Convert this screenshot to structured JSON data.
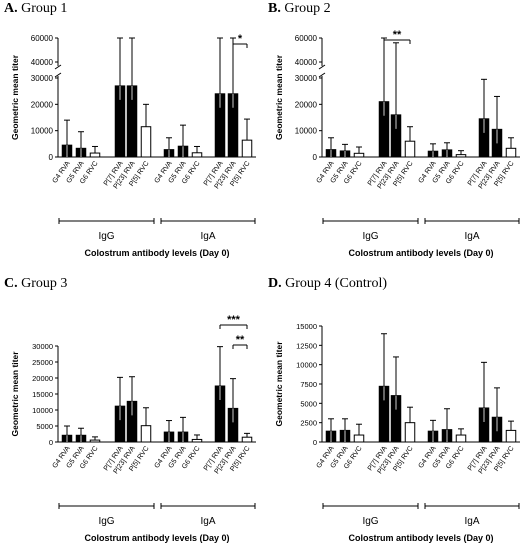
{
  "chart_data": [
    {
      "type": "bar",
      "panel_letter": "A.",
      "title": "Group 1",
      "ylabel": "Geometric mean titer",
      "xlabel": "Colostrum antibody levels (Day 0)",
      "axis_break": true,
      "y_ticks_lower": [
        "0",
        "10000",
        "20000",
        "30000"
      ],
      "y_ticks_upper": [
        "40000",
        "60000"
      ],
      "categories": [
        "G4 RVA",
        "G5 RVA",
        "G6 RVC",
        "P[7] RVA",
        "P[23] RVA",
        "P[5] RVC",
        "G4 RVA",
        "G5 RVA",
        "G6 RVC",
        "P[7] RVA",
        "P[23] RVA",
        "P[5] RVC"
      ],
      "values": [
        4500,
        3300,
        1500,
        27000,
        27000,
        11500,
        2800,
        4100,
        1600,
        24000,
        24000,
        6400
      ],
      "errors": [
        9500,
        6300,
        2500,
        52000,
        50000,
        8500,
        4500,
        8000,
        2400,
        51000,
        45000,
        8000
      ],
      "fill": [
        "black",
        "black",
        "white",
        "black",
        "black",
        "white",
        "black",
        "black",
        "white",
        "black",
        "black",
        "white"
      ],
      "groups": [
        {
          "label": "IgG",
          "from": 0,
          "to": 5
        },
        {
          "label": "IgA",
          "from": 6,
          "to": 11
        }
      ],
      "significance": [
        {
          "label": "*",
          "from": 10,
          "to": 11
        }
      ]
    },
    {
      "type": "bar",
      "panel_letter": "B.",
      "title": "Group 2",
      "ylabel": "Geometric mean titer",
      "xlabel": "Colostrum antibody levels (Day 0)",
      "axis_break": true,
      "y_ticks_lower": [
        "0",
        "10000",
        "20000",
        "30000"
      ],
      "y_ticks_upper": [
        "40000",
        "60000"
      ],
      "categories": [
        "G4 RVA",
        "G5 RVA",
        "G6 RVC",
        "P[7] RVA",
        "P[23] RVA",
        "P[5] RVC",
        "G4 RVA",
        "G5 RVA",
        "G6 RVC",
        "P[7] RVA",
        "P[23] RVA",
        "P[5] RVC"
      ],
      "values": [
        2800,
        2300,
        1400,
        21000,
        16000,
        6000,
        2200,
        2700,
        900,
        14500,
        10500,
        3300
      ],
      "errors": [
        4500,
        2500,
        2400,
        52000,
        40000,
        5500,
        2800,
        2700,
        1500,
        15000,
        12500,
        4000
      ],
      "fill": [
        "black",
        "black",
        "white",
        "black",
        "black",
        "white",
        "black",
        "black",
        "white",
        "black",
        "black",
        "white"
      ],
      "groups": [
        {
          "label": "IgG",
          "from": 0,
          "to": 5
        },
        {
          "label": "IgA",
          "from": 6,
          "to": 11
        }
      ],
      "significance": [
        {
          "label": "**",
          "from": 3,
          "to": 5
        }
      ]
    },
    {
      "type": "bar",
      "panel_letter": "C.",
      "title": "Group 3",
      "ylabel": "Geometric mean titer",
      "xlabel": "Colostrum antibody levels (Day 0)",
      "axis_break": false,
      "ylim": [
        0,
        30000
      ],
      "y_ticks": [
        "0",
        "5000",
        "10000",
        "15000",
        "20000",
        "25000",
        "30000"
      ],
      "categories": [
        "G4 RVA",
        "G5 RVA",
        "G6 RVC",
        "P[7] RVA",
        "P[23] RVA",
        "P[5] RVC",
        "G4 RVA",
        "G5 RVA",
        "G6 RVC",
        "P[7] RVA",
        "P[23] RVA",
        "P[5] RVC"
      ],
      "values": [
        2100,
        2100,
        600,
        11200,
        12700,
        5100,
        3100,
        3100,
        800,
        17500,
        10500,
        1500
      ],
      "errors": [
        2900,
        2200,
        1000,
        9000,
        7700,
        5600,
        3600,
        4600,
        1400,
        12300,
        9300,
        1200
      ],
      "fill": [
        "black",
        "black",
        "white",
        "black",
        "black",
        "white",
        "black",
        "black",
        "white",
        "black",
        "black",
        "white"
      ],
      "groups": [
        {
          "label": "IgG",
          "from": 0,
          "to": 5
        },
        {
          "label": "IgA",
          "from": 6,
          "to": 11
        }
      ],
      "significance": [
        {
          "label": "***",
          "from": 9,
          "to": 11
        },
        {
          "label": "**",
          "from": 10,
          "to": 11
        }
      ]
    },
    {
      "type": "bar",
      "panel_letter": "D.",
      "title": "Group 4 (Control)",
      "ylabel": "Geometric mean titer",
      "xlabel": "Colostrum antibody levels (Day 0)",
      "axis_break": false,
      "ylim": [
        0,
        15000
      ],
      "y_ticks": [
        "0",
        "2500",
        "5000",
        "7500",
        "10000",
        "12500",
        "15000"
      ],
      "categories": [
        "G4 RVA",
        "G5 RVA",
        "G6 RVC",
        "P[7] RVA",
        "P[23] RVA",
        "P[5] RVC",
        "G4 RVA",
        "G5 RVA",
        "G6 RVC",
        "P[7] RVA",
        "P[23] RVA",
        "P[5] RVC"
      ],
      "values": [
        1400,
        1500,
        900,
        7200,
        6000,
        2500,
        1400,
        1600,
        900,
        4400,
        3200,
        1500
      ],
      "errors": [
        1600,
        1500,
        1400,
        6800,
        5000,
        2000,
        1400,
        2700,
        800,
        5900,
        3800,
        1200
      ],
      "fill": [
        "black",
        "black",
        "white",
        "black",
        "black",
        "white",
        "black",
        "black",
        "white",
        "black",
        "black",
        "white"
      ],
      "groups": [
        {
          "label": "IgG",
          "from": 0,
          "to": 5
        },
        {
          "label": "IgA",
          "from": 6,
          "to": 11
        }
      ],
      "significance": []
    }
  ]
}
